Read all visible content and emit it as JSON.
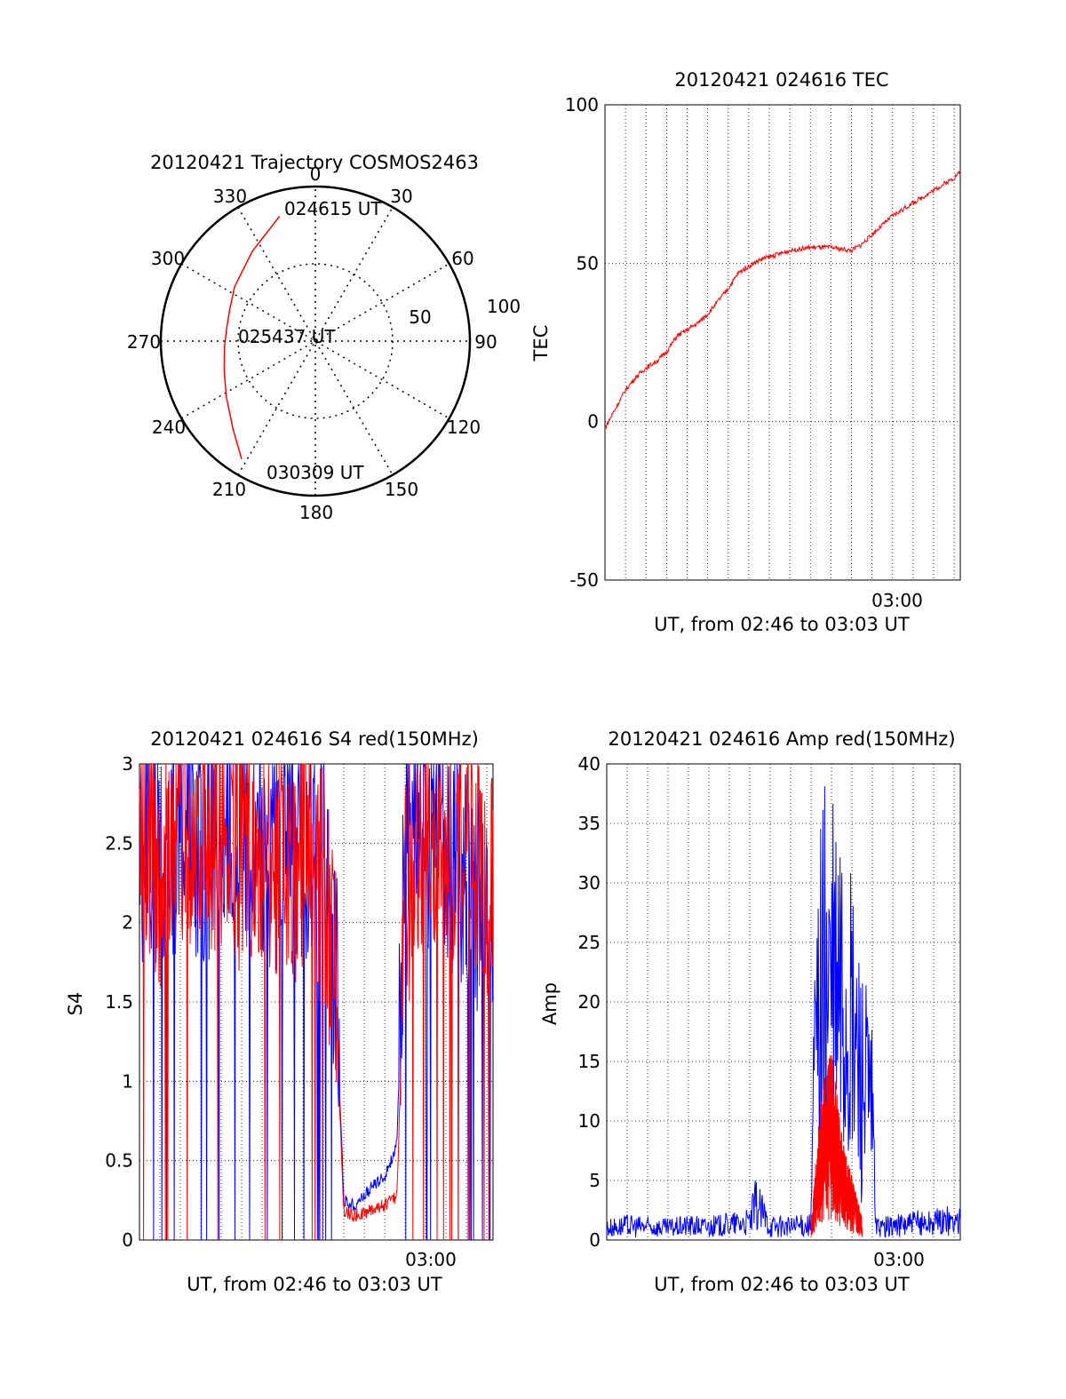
{
  "chart_data": [
    {
      "type": "polar",
      "title": "20120421 Trajectory COSMOS2463",
      "azimuth_labels": [
        "0",
        "30",
        "60",
        "90",
        "120",
        "150",
        "180",
        "210",
        "240",
        "270",
        "300",
        "330"
      ],
      "radius_labels": [
        "50",
        "100"
      ],
      "rlim": [
        0,
        100
      ],
      "grid": true,
      "series": [
        {
          "color": "#ff0000",
          "points": [
            {
              "az": 344,
              "r": 84
            },
            {
              "az": 325,
              "r": 71
            },
            {
              "az": 304,
              "r": 63
            },
            {
              "az": 290,
              "r": 59
            },
            {
              "az": 278,
              "r": 58
            },
            {
              "az": 266,
              "r": 59
            },
            {
              "az": 252,
              "r": 62
            },
            {
              "az": 238,
              "r": 68
            },
            {
              "az": 223,
              "r": 78
            },
            {
              "az": 212,
              "r": 90
            }
          ]
        }
      ],
      "annotations": [
        "024615 UT",
        "025437 UT",
        "030309 UT"
      ]
    },
    {
      "type": "line",
      "title": "20120421 024616 TEC",
      "xlabel": "UT, from 02:46 to 03:03 UT",
      "ylabel": "TEC",
      "xlim_minutes_after_0246": [
        0,
        17.3
      ],
      "ylim": [
        -50,
        100
      ],
      "xtick_labels": [
        {
          "at_min": 14,
          "label": "03:00"
        }
      ],
      "ytick_labels": [
        "-50",
        "0",
        "50",
        "100"
      ],
      "grid": true,
      "series": [
        {
          "color": "#ff0000",
          "x_min": [
            0,
            0.5,
            1,
            1.5,
            2,
            2.5,
            3,
            3.5,
            4,
            4.5,
            5,
            5.5,
            6,
            6.5,
            7,
            7.5,
            8,
            8.5,
            9,
            9.5,
            10,
            10.5,
            11,
            11.5,
            12,
            12.5,
            13,
            13.5,
            14,
            14.5,
            15,
            15.5,
            16,
            16.5,
            17,
            17.3
          ],
          "y": [
            -2,
            4,
            10,
            14,
            17,
            19,
            22,
            27,
            29,
            31,
            34,
            38,
            42,
            47,
            49,
            51,
            52,
            53,
            54,
            54.5,
            55,
            55,
            55,
            54.5,
            54,
            56,
            59,
            62,
            65,
            67,
            69,
            71,
            73,
            75,
            77,
            79
          ]
        }
      ]
    },
    {
      "type": "line",
      "title": "20120421 024616 S4 red(150MHz)",
      "xlabel": "UT, from 02:46 to 03:03 UT",
      "ylabel": "S4",
      "xlim_minutes_after_0246": [
        0,
        17.3
      ],
      "ylim": [
        0,
        3
      ],
      "xtick_labels": [
        {
          "at_min": 14,
          "label": "03:00"
        }
      ],
      "ytick_labels": [
        "0",
        "0.5",
        "1",
        "1.5",
        "2",
        "2.5",
        "3"
      ],
      "grid": true,
      "series": [
        {
          "color": "#0000ff",
          "x_min": [
            0,
            1,
            2,
            3,
            4,
            5,
            6,
            7,
            8,
            9,
            9.6,
            10,
            10.5,
            11,
            11.5,
            12,
            12.6,
            13,
            14,
            15,
            16,
            17,
            17.3
          ],
          "y": [
            2.4,
            2.3,
            2.5,
            2.4,
            2.3,
            2.5,
            2.4,
            2.3,
            2.4,
            2.2,
            1.6,
            0.25,
            0.22,
            0.28,
            0.35,
            0.4,
            0.6,
            2.3,
            2.4,
            2.3,
            2.2,
            1.9,
            1.8
          ]
        },
        {
          "color": "#ff0000",
          "x_min": [
            0,
            1,
            2,
            3,
            4,
            5,
            6,
            7,
            8,
            9,
            9.6,
            10,
            10.5,
            11,
            11.5,
            12,
            12.6,
            13,
            14,
            15,
            16,
            17,
            17.3
          ],
          "y": [
            2.6,
            2.2,
            2.4,
            2.3,
            2.5,
            2.3,
            2.4,
            2.2,
            2.3,
            2.1,
            1.4,
            0.18,
            0.15,
            0.17,
            0.2,
            0.22,
            0.28,
            2.0,
            2.5,
            2.4,
            2.3,
            2.2,
            2.0
          ]
        }
      ]
    },
    {
      "type": "line",
      "title": "20120421 024616 Amp red(150MHz)",
      "xlabel": "UT, from 02:46 to 03:03 UT",
      "ylabel": "Amp",
      "xlim_minutes_after_0246": [
        0,
        17.3
      ],
      "ylim": [
        0,
        40
      ],
      "xtick_labels": [
        {
          "at_min": 14,
          "label": "03:00"
        }
      ],
      "ytick_labels": [
        "0",
        "5",
        "10",
        "15",
        "20",
        "25",
        "30",
        "35",
        "40"
      ],
      "grid": true,
      "series": [
        {
          "color": "#0000ff",
          "x_min": [
            0,
            1,
            2,
            3,
            4,
            5,
            6,
            7,
            7.3,
            8,
            9,
            10,
            10.1,
            10.5,
            11,
            11.5,
            12,
            12.5,
            13,
            13.2,
            14,
            15,
            16,
            17,
            17.3
          ],
          "y": [
            1,
            1.2,
            1.1,
            1.0,
            1.2,
            1.1,
            1.3,
            1.5,
            3,
            1.2,
            1.1,
            1.3,
            12,
            22,
            21,
            20,
            17,
            14,
            10,
            1,
            1.2,
            1.4,
            1.5,
            1.6,
            1.5
          ]
        },
        {
          "color": "#ff0000",
          "x_min": [
            10,
            10.5,
            11,
            11.5,
            12,
            12.5
          ],
          "y": [
            1,
            7,
            9,
            5,
            3,
            1
          ]
        }
      ]
    }
  ]
}
